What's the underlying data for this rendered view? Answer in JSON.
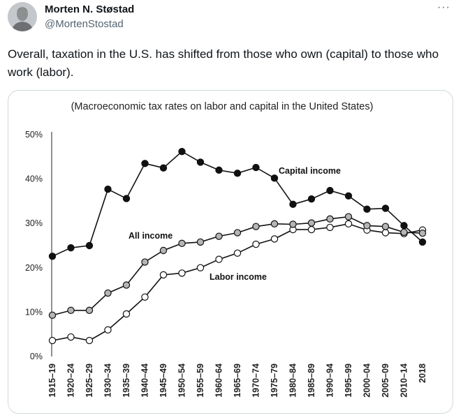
{
  "tweet": {
    "author_name": "Morten N. Støstad",
    "author_handle": "@MortenStostad",
    "more_label": "···",
    "text": "Overall, taxation in the U.S. has shifted from those who own (capital) to those who work (labor)."
  },
  "chart_data": {
    "type": "line",
    "title": "(Macroeconomic tax rates on labor and capital in the United States)",
    "categories": [
      "1915–19",
      "1920–24",
      "1925–29",
      "1930–34",
      "1935–39",
      "1940–44",
      "1945–49",
      "1950–54",
      "1955–59",
      "1960–64",
      "1965–69",
      "1970–74",
      "1975–79",
      "1980–84",
      "1985–89",
      "1990–94",
      "1995–99",
      "2000–04",
      "2005–09",
      "2010–14",
      "2018"
    ],
    "ylim": [
      0,
      50
    ],
    "yticks": [
      "0%",
      "10%",
      "20%",
      "30%",
      "40%",
      "50%"
    ],
    "grid": false,
    "series": [
      {
        "name": "Capital income",
        "marker": "black",
        "values": [
          22.6,
          24.5,
          25.0,
          37.7,
          35.6,
          43.5,
          42.5,
          46.2,
          43.8,
          42.0,
          41.3,
          42.6,
          40.2,
          34.3,
          35.5,
          37.4,
          36.2,
          33.2,
          33.4,
          29.5,
          25.8
        ]
      },
      {
        "name": "All income",
        "marker": "gray",
        "values": [
          9.3,
          10.4,
          10.4,
          14.3,
          16.1,
          21.3,
          23.9,
          25.5,
          25.8,
          27.1,
          27.9,
          29.3,
          29.9,
          29.8,
          30.1,
          31.0,
          31.5,
          29.5,
          29.3,
          28.0,
          27.8
        ]
      },
      {
        "name": "Labor income",
        "marker": "white",
        "values": [
          3.6,
          4.4,
          3.6,
          6.0,
          9.6,
          13.4,
          18.4,
          18.8,
          20.0,
          21.9,
          23.3,
          25.3,
          26.5,
          28.6,
          28.6,
          29.1,
          29.9,
          28.5,
          27.9,
          27.7,
          28.5
        ]
      }
    ],
    "colors": {
      "black_marker": "#111111",
      "gray_marker": "#b5b5b5",
      "white_marker": "#ffffff",
      "line": "#111111"
    }
  }
}
